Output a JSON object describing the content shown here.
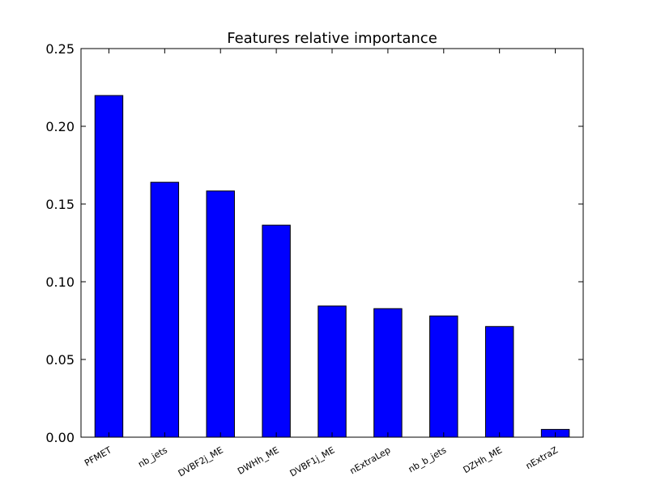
{
  "chart_data": {
    "type": "bar",
    "title": "Features relative importance",
    "xlabel": "",
    "ylabel": "",
    "categories": [
      "PFMET",
      "nb_jets",
      "DVBF2j_ME",
      "DWHh_ME",
      "DVBF1j_ME",
      "nExtraLep",
      "nb_b_jets",
      "DZHh_ME",
      "nExtraZ"
    ],
    "values": [
      0.2198,
      0.164,
      0.1584,
      0.1364,
      0.0844,
      0.0827,
      0.078,
      0.0712,
      0.005
    ],
    "ylim": [
      0,
      0.25
    ],
    "yticks": [
      0.0,
      0.05,
      0.1,
      0.15,
      0.2,
      0.25
    ],
    "ytick_labels": [
      "0.00",
      "0.05",
      "0.10",
      "0.15",
      "0.20",
      "0.25"
    ],
    "bar_color": "#0000ff",
    "edge_color": "#000000",
    "grid": false,
    "legend": "none",
    "x_tick_rotation": "rotated about 30 degrees"
  }
}
